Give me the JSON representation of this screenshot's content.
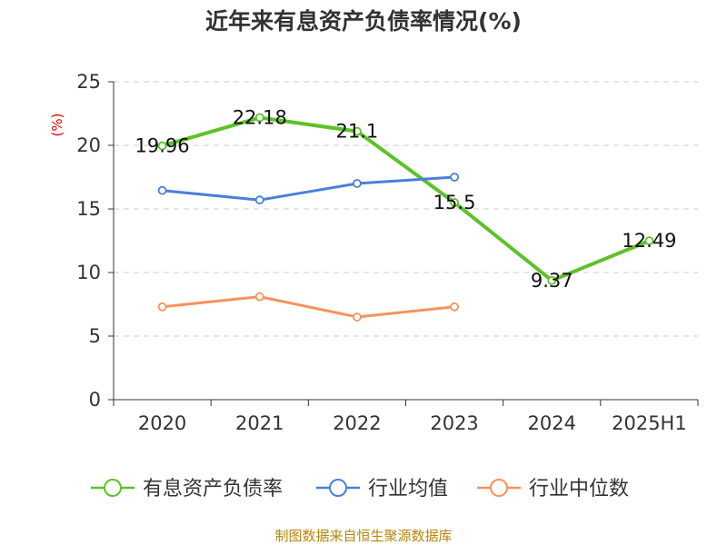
{
  "chart_data": {
    "type": "line",
    "title": "近年来有息资产负债率情况(%)",
    "ylabel": "(%)",
    "xlabel": "",
    "categories": [
      "2020",
      "2021",
      "2022",
      "2023",
      "2024",
      "2025H1"
    ],
    "ylim": [
      0,
      25
    ],
    "yticks": [
      0,
      5,
      10,
      15,
      20,
      25
    ],
    "grid": true,
    "legend_position": "bottom",
    "series": [
      {
        "name": "有息资产负债率",
        "color": "#5cc228",
        "values": [
          19.96,
          22.18,
          21.1,
          15.5,
          9.37,
          12.49
        ],
        "labels": [
          "19.96",
          "22.18",
          "21.1",
          "15.5",
          "9.37",
          "12.49"
        ],
        "show_labels": true
      },
      {
        "name": "行业均值",
        "color": "#4a7fdb",
        "values": [
          16.45,
          15.7,
          17.0,
          17.5,
          null,
          null
        ],
        "show_labels": false
      },
      {
        "name": "行业中位数",
        "color": "#f5935e",
        "values": [
          7.3,
          8.1,
          6.5,
          7.3,
          null,
          null
        ],
        "show_labels": false
      }
    ],
    "source": "制图数据来自恒生聚源数据库"
  },
  "colors": {
    "title": "#333333",
    "axis": "#333333",
    "grid": "#cccccc",
    "ylabel": "#e00000",
    "source": "#b8860b",
    "labels": "#111111"
  }
}
